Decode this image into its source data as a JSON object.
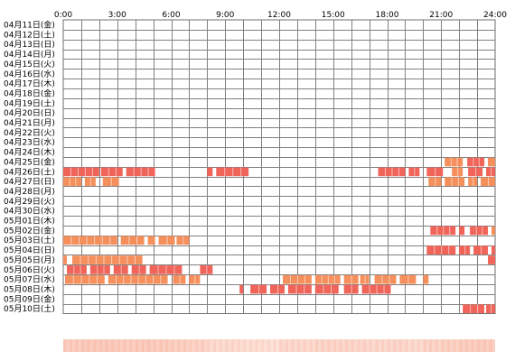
{
  "chart_data": {
    "type": "heatmap",
    "x_unit": "hour",
    "x_range": [
      0,
      24
    ],
    "x_ticks": [
      "0:00",
      "3:00",
      "6:00",
      "9:00",
      "12:00",
      "15:00",
      "18:00",
      "21:00",
      "24:00"
    ],
    "rows": [
      {
        "label": "04月11日(金)",
        "intervals": []
      },
      {
        "label": "04月12日(土)",
        "intervals": []
      },
      {
        "label": "04月13日(日)",
        "intervals": []
      },
      {
        "label": "04月14日(月)",
        "intervals": []
      },
      {
        "label": "04月15日(火)",
        "intervals": []
      },
      {
        "label": "04月16日(水)",
        "intervals": []
      },
      {
        "label": "04月17日(木)",
        "intervals": []
      },
      {
        "label": "04月18日(金)",
        "intervals": []
      },
      {
        "label": "04月19日(土)",
        "intervals": []
      },
      {
        "label": "04月20日(日)",
        "intervals": []
      },
      {
        "label": "04月21日(月)",
        "intervals": []
      },
      {
        "label": "04月22日(火)",
        "intervals": []
      },
      {
        "label": "04月23日(水)",
        "intervals": []
      },
      {
        "label": "04月24日(木)",
        "intervals": []
      },
      {
        "label": "04月25日(金)",
        "intervals": [
          [
            21.2,
            22.2,
            "o"
          ],
          [
            22.45,
            23.4,
            "r"
          ],
          [
            23.6,
            24,
            "o"
          ]
        ]
      },
      {
        "label": "04月26日(土)",
        "intervals": [
          [
            0,
            2.0,
            "r"
          ],
          [
            2.1,
            3.3,
            "r"
          ],
          [
            3.5,
            5.1,
            "r"
          ],
          [
            8.0,
            8.3,
            "r"
          ],
          [
            8.5,
            10.3,
            "r"
          ],
          [
            17.5,
            19.0,
            "r"
          ],
          [
            19.2,
            19.8,
            "r"
          ],
          [
            20.2,
            21.1,
            "r"
          ],
          [
            21.6,
            22.2,
            "o"
          ],
          [
            22.5,
            23.3,
            "r"
          ],
          [
            23.5,
            24,
            "r"
          ]
        ]
      },
      {
        "label": "04月27日(日)",
        "intervals": [
          [
            0,
            1.0,
            "o"
          ],
          [
            1.2,
            1.8,
            "o"
          ],
          [
            2.2,
            3.1,
            "o"
          ],
          [
            20.3,
            21.0,
            "o"
          ],
          [
            21.2,
            22.3,
            "o"
          ],
          [
            22.5,
            23.0,
            "o"
          ],
          [
            23.2,
            24,
            "o"
          ]
        ]
      },
      {
        "label": "04月28日(月)",
        "intervals": []
      },
      {
        "label": "04月29日(火)",
        "intervals": []
      },
      {
        "label": "04月30日(水)",
        "intervals": []
      },
      {
        "label": "05月01日(木)",
        "intervals": []
      },
      {
        "label": "05月02日(金)",
        "intervals": [
          [
            20.4,
            21.8,
            "r"
          ],
          [
            22.0,
            22.3,
            "r"
          ],
          [
            22.6,
            23.6,
            "r"
          ],
          [
            23.8,
            24,
            "o"
          ]
        ]
      },
      {
        "label": "05月03日(土)",
        "intervals": [
          [
            0,
            3.0,
            "o"
          ],
          [
            3.2,
            4.5,
            "o"
          ],
          [
            4.7,
            5.1,
            "o"
          ],
          [
            5.3,
            6.2,
            "o"
          ],
          [
            6.3,
            7.0,
            "o"
          ]
        ]
      },
      {
        "label": "05月04日(日)",
        "intervals": [
          [
            20.2,
            21.8,
            "r"
          ],
          [
            22.0,
            22.6,
            "r"
          ],
          [
            22.8,
            23.6,
            "r"
          ],
          [
            23.8,
            24,
            "r"
          ]
        ]
      },
      {
        "label": "05月05日(月)",
        "intervals": [
          [
            0,
            0.2,
            "o"
          ],
          [
            0.5,
            4.4,
            "o"
          ],
          [
            23.6,
            24,
            "r"
          ]
        ]
      },
      {
        "label": "05月06日(火)",
        "intervals": [
          [
            0.2,
            1.3,
            "r"
          ],
          [
            1.5,
            2.6,
            "r"
          ],
          [
            2.8,
            3.6,
            "r"
          ],
          [
            3.8,
            4.6,
            "r"
          ],
          [
            4.8,
            6.6,
            "r"
          ],
          [
            7.6,
            8.3,
            "r"
          ]
        ]
      },
      {
        "label": "05月07日(水)",
        "intervals": [
          [
            0.1,
            2.3,
            "o"
          ],
          [
            2.5,
            5.8,
            "o"
          ],
          [
            6.1,
            6.8,
            "o"
          ],
          [
            7.0,
            7.6,
            "o"
          ],
          [
            12.2,
            13.8,
            "o"
          ],
          [
            14.0,
            15.4,
            "o"
          ],
          [
            15.6,
            16.4,
            "o"
          ],
          [
            16.5,
            17.0,
            "o"
          ],
          [
            17.3,
            18.5,
            "o"
          ],
          [
            18.7,
            19.6,
            "o"
          ],
          [
            20.0,
            20.3,
            "o"
          ]
        ]
      },
      {
        "label": "05月08日(木)",
        "intervals": [
          [
            9.8,
            10.0,
            "r"
          ],
          [
            10.4,
            11.3,
            "r"
          ],
          [
            11.5,
            12.3,
            "r"
          ],
          [
            12.5,
            13.8,
            "r"
          ],
          [
            14.0,
            15.3,
            "r"
          ],
          [
            15.6,
            16.4,
            "r"
          ],
          [
            16.6,
            18.2,
            "r"
          ]
        ]
      },
      {
        "label": "05月09日(金)",
        "intervals": []
      },
      {
        "label": "05月10日(土)",
        "intervals": [
          [
            22.2,
            23.4,
            "r"
          ],
          [
            23.5,
            24,
            "r"
          ]
        ]
      }
    ],
    "colors": {
      "o": "#f58f5c",
      "r": "#f0645a",
      "separator": "#ffffff",
      "grid": "#808080",
      "border": "#6f6f6f"
    },
    "summary_bar": {
      "gradient_from": "#fbd0c2",
      "gradient_to": "#fde8df",
      "intensity": [
        0.55,
        0.6,
        0.6,
        0.55,
        0.58,
        0.55,
        0.5,
        0.45,
        0.3,
        0.3,
        0.25,
        0.22,
        0.35,
        0.35,
        0.4,
        0.4,
        0.38,
        0.36,
        0.38,
        0.32,
        0.42,
        0.48,
        0.52,
        0.55
      ]
    }
  }
}
